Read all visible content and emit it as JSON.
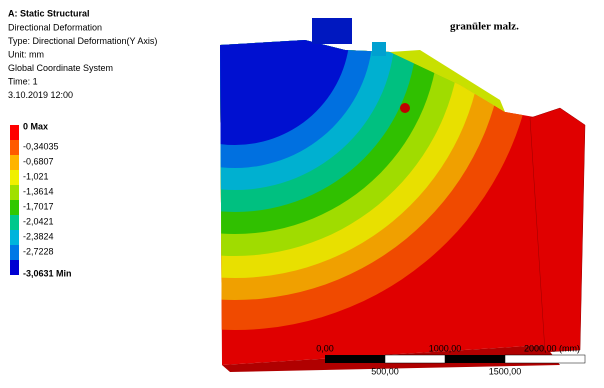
{
  "header": {
    "title": "A: Static Structural",
    "lines": [
      "Directional Deformation",
      "Type: Directional Deformation(Y Axis)",
      "Unit: mm",
      "Global Coordinate System",
      "Time: 1",
      "3.10.2019 12:00"
    ]
  },
  "legend": [
    {
      "label": "0 Max",
      "color": "#ff0000"
    },
    {
      "label": "-0,34035",
      "color": "#ff5a00"
    },
    {
      "label": "-0,6807",
      "color": "#ffb400"
    },
    {
      "label": "-1,021",
      "color": "#f0f000"
    },
    {
      "label": "-1,3614",
      "color": "#a0e000"
    },
    {
      "label": "-1,7017",
      "color": "#30c800"
    },
    {
      "label": "-2,0421",
      "color": "#00c88c"
    },
    {
      "label": "-2,3824",
      "color": "#00b4dc"
    },
    {
      "label": "-2,7228",
      "color": "#0078e6"
    },
    {
      "label": "-3,0631 Min",
      "color": "#0000d2"
    }
  ],
  "annotation": "granüler malz.",
  "scale": {
    "top": [
      "0,00",
      "1000,00",
      "2000,00 (mm)"
    ],
    "bottom": [
      "500,00",
      "1500,00"
    ]
  }
}
